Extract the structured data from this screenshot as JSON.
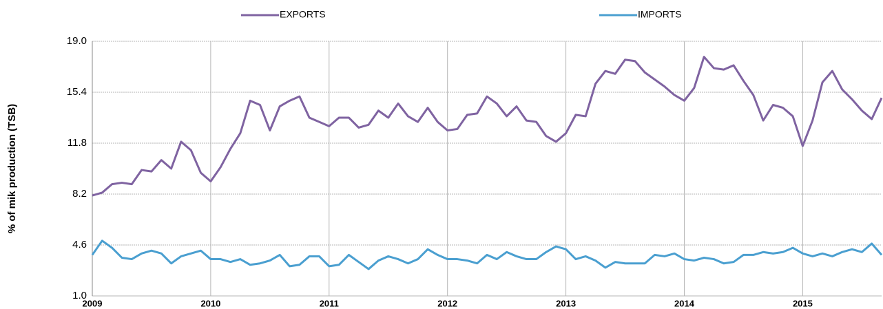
{
  "chart_data": {
    "type": "line",
    "y_label": "% of mik production (TSB)",
    "categories": [
      "2009",
      null,
      null,
      null,
      null,
      null,
      null,
      null,
      null,
      null,
      null,
      null,
      "2010",
      null,
      null,
      null,
      null,
      null,
      null,
      null,
      null,
      null,
      null,
      null,
      "2011",
      null,
      null,
      null,
      null,
      null,
      null,
      null,
      null,
      null,
      null,
      null,
      "2012",
      null,
      null,
      null,
      null,
      null,
      null,
      null,
      null,
      null,
      null,
      null,
      "2013",
      null,
      null,
      null,
      null,
      null,
      null,
      null,
      null,
      null,
      null,
      null,
      "2014",
      null,
      null,
      null,
      null,
      null,
      null,
      null,
      null,
      null,
      null,
      null,
      "2015",
      null,
      null,
      null,
      null,
      null,
      null,
      null,
      null
    ],
    "series": [
      {
        "name": "EXPORTS",
        "color": "#7f63a1",
        "values": [
          8.1,
          8.3,
          8.9,
          9.0,
          8.9,
          9.9,
          9.8,
          10.6,
          10.0,
          11.9,
          11.3,
          9.7,
          9.1,
          10.1,
          11.4,
          12.5,
          14.8,
          14.5,
          12.7,
          14.4,
          14.8,
          15.1,
          13.6,
          13.3,
          13.0,
          13.6,
          13.6,
          12.9,
          13.1,
          14.1,
          13.6,
          14.6,
          13.7,
          13.3,
          14.3,
          13.3,
          12.7,
          12.8,
          13.8,
          13.9,
          15.1,
          14.6,
          13.7,
          14.4,
          13.4,
          13.3,
          12.3,
          11.9,
          12.5,
          13.8,
          13.7,
          16.0,
          16.9,
          16.7,
          17.7,
          17.6,
          16.8,
          16.3,
          15.8,
          15.2,
          14.8,
          15.7,
          17.9,
          17.1,
          17.0,
          17.3,
          16.2,
          15.2,
          13.4,
          14.5,
          14.3,
          13.7,
          11.6,
          13.4,
          16.1,
          16.9,
          15.6,
          14.9,
          14.1,
          13.5,
          15.0
        ]
      },
      {
        "name": "IMPORTS",
        "color": "#4a9fd0",
        "values": [
          3.9,
          4.9,
          4.4,
          3.7,
          3.6,
          4.0,
          4.2,
          4.0,
          3.3,
          3.8,
          4.0,
          4.2,
          3.6,
          3.6,
          3.4,
          3.6,
          3.2,
          3.3,
          3.5,
          3.9,
          3.1,
          3.2,
          3.8,
          3.8,
          3.1,
          3.2,
          3.9,
          3.4,
          2.9,
          3.5,
          3.8,
          3.6,
          3.3,
          3.6,
          4.3,
          3.9,
          3.6,
          3.6,
          3.5,
          3.3,
          3.9,
          3.6,
          4.1,
          3.8,
          3.6,
          3.6,
          4.1,
          4.5,
          4.3,
          3.6,
          3.8,
          3.5,
          3.0,
          3.4,
          3.3,
          3.3,
          3.3,
          3.9,
          3.8,
          4.0,
          3.6,
          3.5,
          3.7,
          3.6,
          3.3,
          3.4,
          3.9,
          3.9,
          4.1,
          4.0,
          4.1,
          4.4,
          4.0,
          3.8,
          4.0,
          3.8,
          4.1,
          4.3,
          4.1,
          4.7,
          3.9
        ]
      }
    ],
    "ylim": [
      1.0,
      19.0
    ],
    "yticks": [
      {
        "value": 1.0,
        "label": "1.0"
      },
      4.6,
      8.2,
      11.8,
      15.4,
      {
        "value": 19.0,
        "label": "19.0"
      }
    ],
    "grid": true,
    "legend": "top"
  }
}
